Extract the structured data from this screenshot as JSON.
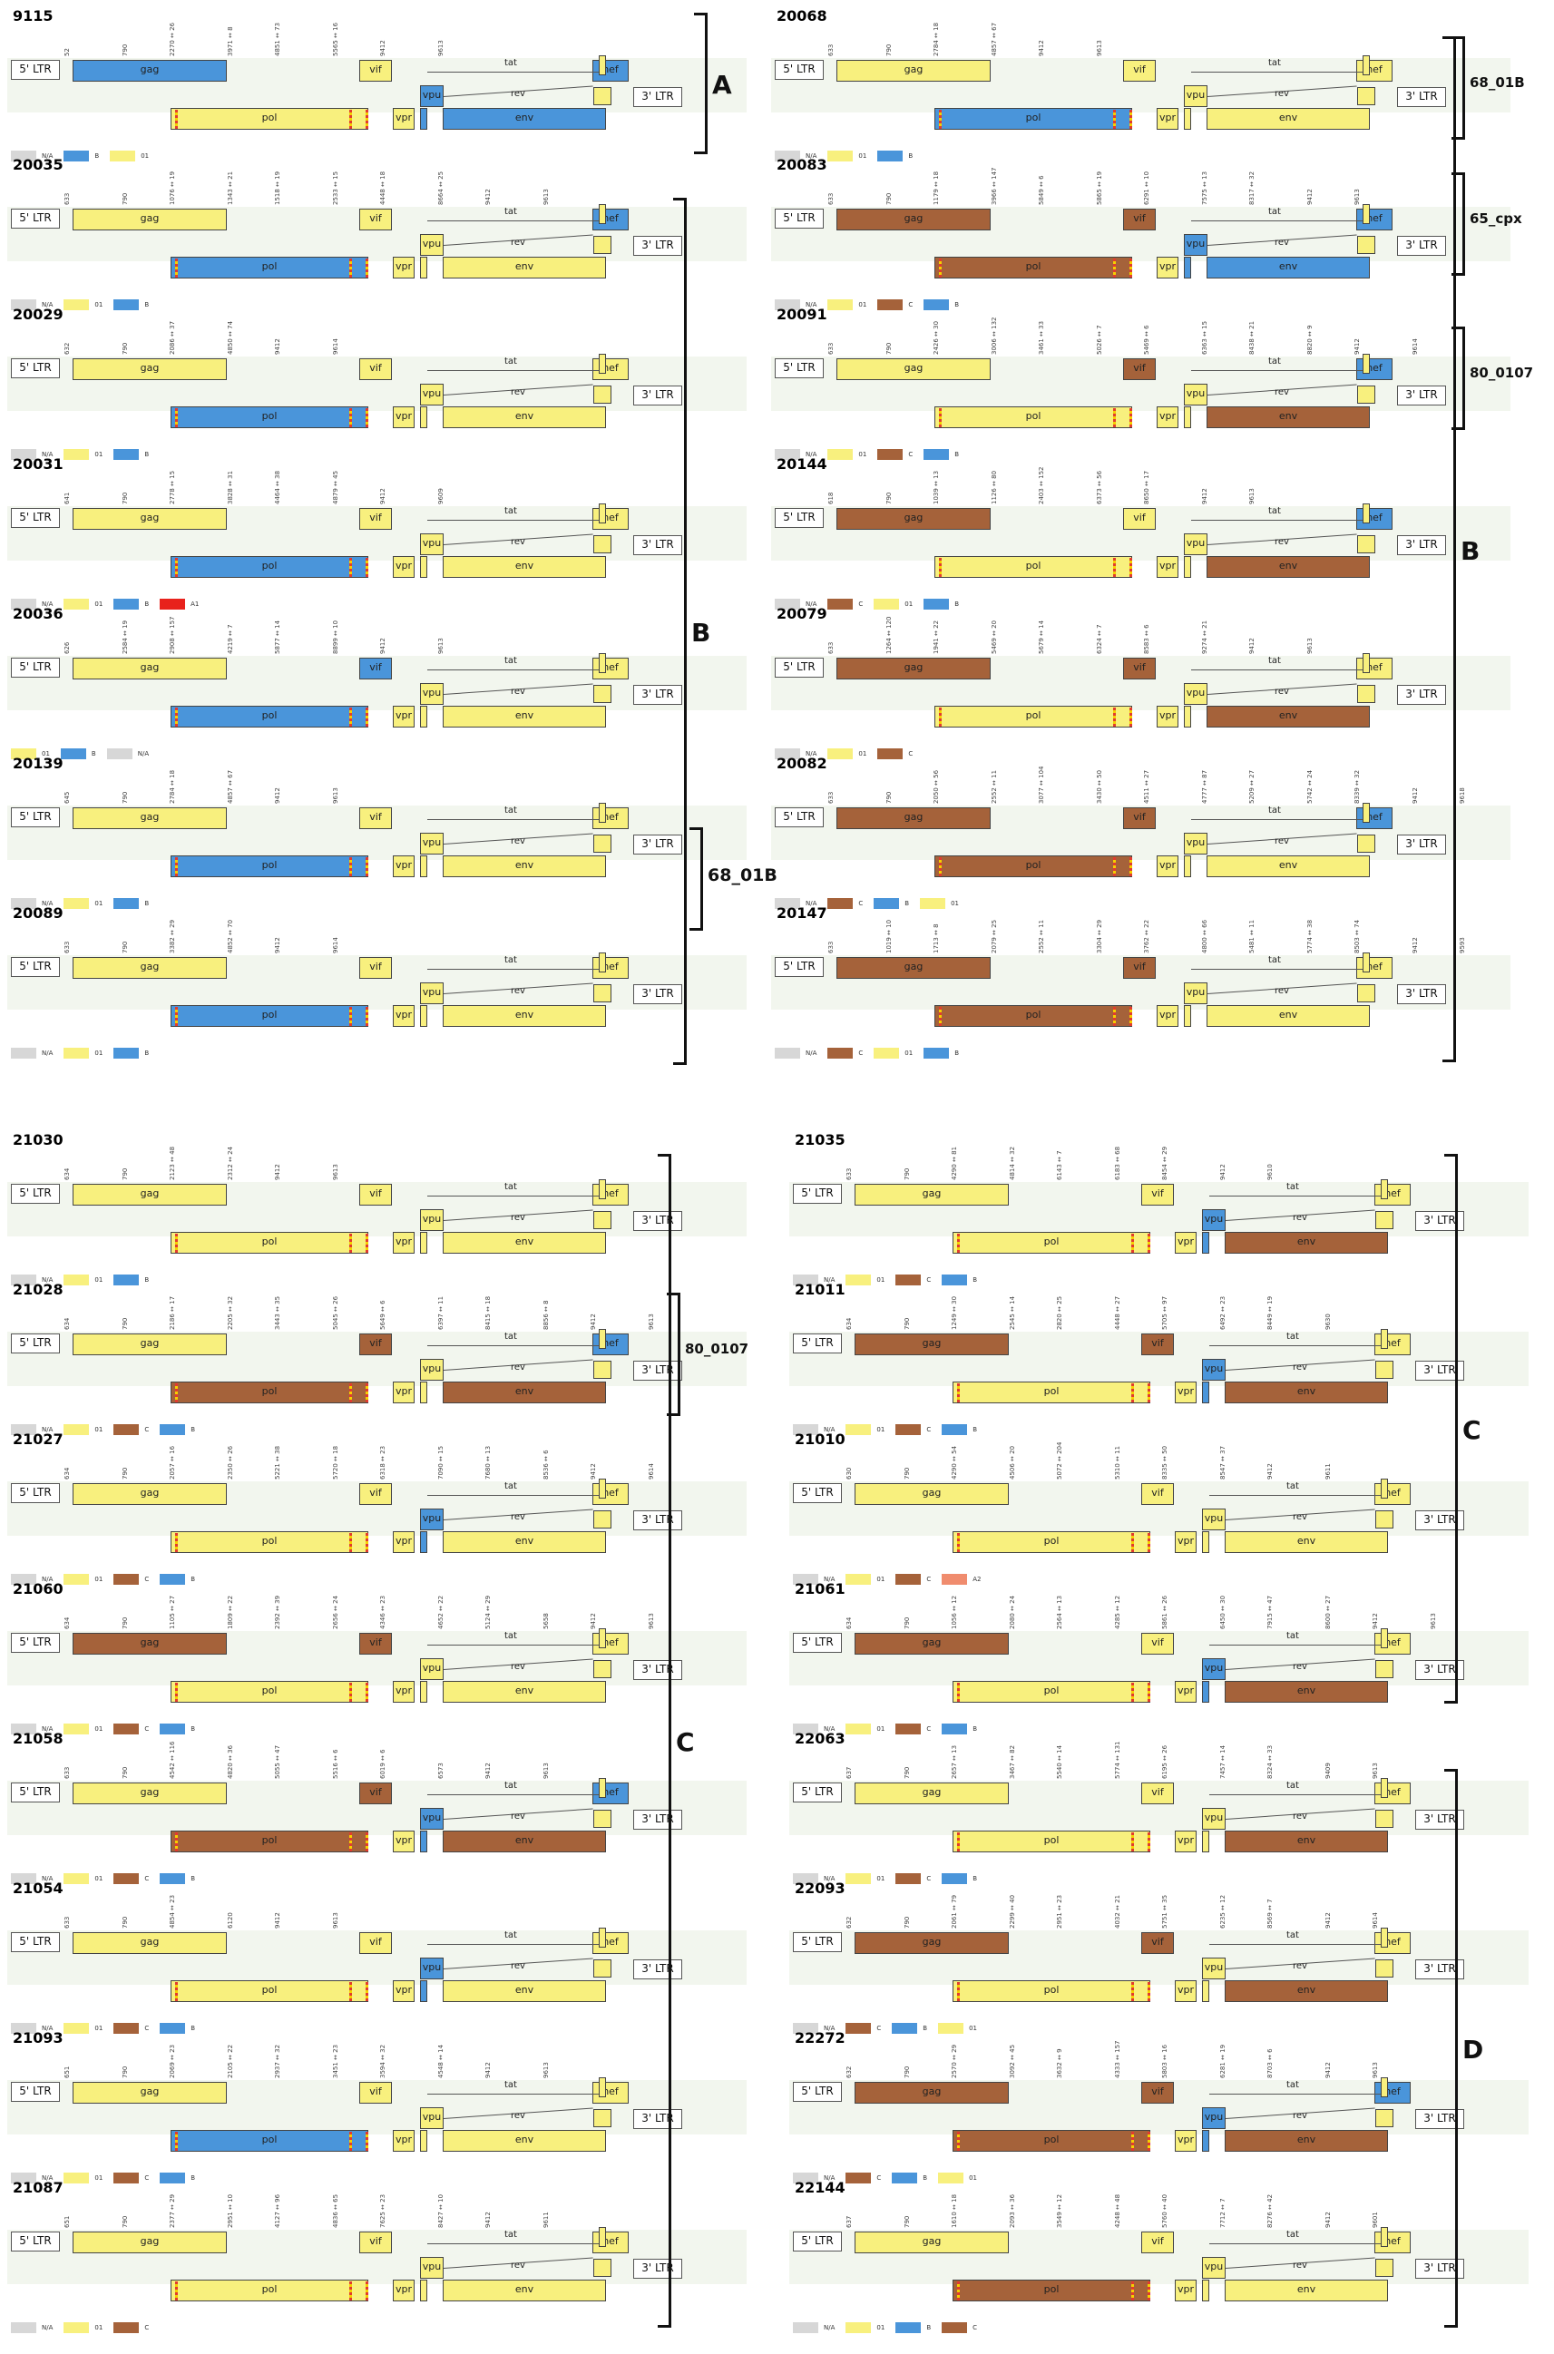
{
  "colors": {
    "yellow": "#f8f07e",
    "blue": "#4a95da",
    "brown": "#a5623a",
    "gray": "#d7d7d7",
    "red": "#e8221c",
    "salmon": "#f08c6e"
  },
  "labels": {
    "ltr5": "5' LTR",
    "ltr3": "3' LTR",
    "tat": "tat",
    "rev": "rev"
  },
  "legend_names": {
    "gray": "N/A",
    "yellow": "01",
    "blue": "B",
    "brown": "C",
    "red": "A1",
    "salmon": "A2"
  },
  "groups": [
    {
      "name": "A",
      "size": 28
    },
    {
      "name": "68_01B",
      "size": 19
    },
    {
      "name": "B",
      "size": 28
    },
    {
      "name": "68_01B",
      "size": 15
    },
    {
      "name": "65_cpx",
      "size": 15
    },
    {
      "name": "80_0107",
      "size": 15
    },
    {
      "name": "B",
      "size": 28
    },
    {
      "name": "80_0107",
      "size": 15
    },
    {
      "name": "C",
      "size": 28
    },
    {
      "name": "C",
      "size": 28
    },
    {
      "name": "D",
      "size": 28
    }
  ],
  "samples": [
    {
      "id": "9115",
      "pol": "Y",
      "gag": "B",
      "env": "B",
      "vif": "Y",
      "nef": "B",
      "vpu": "B",
      "legend": [
        "gray",
        "blue",
        "yellow"
      ],
      "ticks": [
        "52",
        "790",
        "2270 ↔ 26",
        "3971 ↔ 8",
        "4851 ↔ 73",
        "5565 ↔ 16",
        "9412",
        "9613"
      ]
    },
    {
      "id": "20035",
      "pol": "B",
      "gag": "Y",
      "env": "Y",
      "vif": "Y",
      "nef": "B",
      "vpu": "Y",
      "legend": [
        "gray",
        "yellow",
        "blue"
      ],
      "ticks": [
        "633",
        "790",
        "1076 ↔ 19",
        "1343 ↔ 21",
        "1518 ↔ 19",
        "2533 ↔ 15",
        "4448 ↔ 18",
        "8664 ↔ 25",
        "9412",
        "9613"
      ]
    },
    {
      "id": "20029",
      "pol": "B",
      "gag": "Y",
      "env": "Y",
      "vif": "Y",
      "nef": "Y",
      "vpu": "Y",
      "legend": [
        "gray",
        "yellow",
        "blue"
      ],
      "ticks": [
        "632",
        "790",
        "2086 ↔ 37",
        "4850 ↔ 74",
        "9412",
        "9614"
      ]
    },
    {
      "id": "20031",
      "pol": "B",
      "gag": "Y",
      "env": "Y",
      "vif": "Y",
      "nef": "Y",
      "vpu": "Y",
      "legend": [
        "gray",
        "yellow",
        "blue",
        "red"
      ],
      "ticks": [
        "641",
        "790",
        "2778 ↔ 15",
        "3828 ↔ 31",
        "4464 ↔ 38",
        "4879 ↔ 45",
        "9412",
        "9609"
      ]
    },
    {
      "id": "20036",
      "pol": "B",
      "gag": "Y",
      "env": "Y",
      "vif": "B",
      "nef": "Y",
      "vpu": "Y",
      "legend": [
        "yellow",
        "blue",
        "gray"
      ],
      "ticks": [
        "626",
        "2584 ↔ 19",
        "2908 ↔ 157",
        "4219 ↔ 7",
        "5877 ↔ 14",
        "8899 ↔ 10",
        "9412",
        "9613"
      ]
    },
    {
      "id": "20139",
      "pol": "B",
      "gag": "Y",
      "env": "Y",
      "vif": "Y",
      "nef": "Y",
      "vpu": "Y",
      "legend": [
        "gray",
        "yellow",
        "blue"
      ],
      "ticks": [
        "645",
        "790",
        "2784 ↔ 18",
        "4857 ↔ 67",
        "9412",
        "9613"
      ]
    },
    {
      "id": "20089",
      "pol": "B",
      "gag": "Y",
      "env": "Y",
      "vif": "Y",
      "nef": "Y",
      "vpu": "Y",
      "legend": [
        "gray",
        "yellow",
        "blue"
      ],
      "ticks": [
        "633",
        "790",
        "3382 ↔ 29",
        "4852 ↔ 70",
        "9412",
        "9614"
      ]
    },
    {
      "id": "20068",
      "pol": "B",
      "gag": "Y",
      "env": "Y",
      "vif": "Y",
      "nef": "Y",
      "vpu": "Y",
      "legend": [
        "gray",
        "yellow",
        "blue"
      ],
      "ticks": [
        "633",
        "790",
        "2784 ↔ 18",
        "4857 ↔ 67",
        "9412",
        "9613"
      ]
    },
    {
      "id": "20083",
      "pol": "C",
      "gag": "C",
      "env": "B",
      "vif": "C",
      "nef": "B",
      "vpu": "B",
      "legend": [
        "gray",
        "yellow",
        "brown",
        "blue"
      ],
      "ticks": [
        "633",
        "790",
        "1179 ↔ 18",
        "3966 ↔ 147",
        "5849 ↔ 6",
        "5865 ↔ 19",
        "6291 ↔ 10",
        "7575 ↔ 13",
        "8317 ↔ 32",
        "9412",
        "9613"
      ]
    },
    {
      "id": "20091",
      "pol": "Y",
      "gag": "Y",
      "env": "C",
      "vif": "C",
      "nef": "B",
      "vpu": "Y",
      "legend": [
        "gray",
        "yellow",
        "brown",
        "blue"
      ],
      "ticks": [
        "633",
        "790",
        "2426 ↔ 30",
        "3006 ↔ 132",
        "3461 ↔ 33",
        "5026 ↔ 7",
        "5469 ↔ 6",
        "6363 ↔ 15",
        "8438 ↔ 21",
        "8820 ↔ 9",
        "9412",
        "9614"
      ]
    },
    {
      "id": "20144",
      "pol": "Y",
      "gag": "C",
      "env": "C",
      "vif": "Y",
      "nef": "B",
      "vpu": "Y",
      "legend": [
        "gray",
        "brown",
        "yellow",
        "blue"
      ],
      "ticks": [
        "618",
        "790",
        "1039 ↔ 13",
        "1126 ↔ 80",
        "2403 ↔ 152",
        "6373 ↔ 56",
        "8650 ↔ 17",
        "9412",
        "9613"
      ]
    },
    {
      "id": "20079",
      "pol": "Y",
      "gag": "C",
      "env": "C",
      "vif": "C",
      "nef": "Y",
      "vpu": "Y",
      "legend": [
        "gray",
        "yellow",
        "brown"
      ],
      "ticks": [
        "633",
        "1264 ↔ 120",
        "1941 ↔ 22",
        "5469 ↔ 20",
        "5679 ↔ 14",
        "6324 ↔ 7",
        "8583 ↔ 6",
        "9274 ↔ 21",
        "9412",
        "9613"
      ]
    },
    {
      "id": "20082",
      "pol": "C",
      "gag": "C",
      "env": "Y",
      "vif": "C",
      "nef": "B",
      "vpu": "Y",
      "legend": [
        "gray",
        "brown",
        "blue",
        "yellow"
      ],
      "ticks": [
        "633",
        "790",
        "2050 ↔ 56",
        "2552 ↔ 11",
        "3077 ↔ 104",
        "3430 ↔ 50",
        "4511 ↔ 27",
        "4777 ↔ 87",
        "5209 ↔ 27",
        "5742 ↔ 24",
        "8339 ↔ 32",
        "9412",
        "9618"
      ]
    },
    {
      "id": "20147",
      "pol": "C",
      "gag": "C",
      "env": "Y",
      "vif": "C",
      "nef": "Y",
      "vpu": "Y",
      "legend": [
        "gray",
        "brown",
        "yellow",
        "blue"
      ],
      "ticks": [
        "633",
        "1019 ↔ 10",
        "1713 ↔ 8",
        "2079 ↔ 25",
        "2552 ↔ 11",
        "3304 ↔ 29",
        "3762 ↔ 22",
        "4800 ↔ 66",
        "5481 ↔ 11",
        "5774 ↔ 38",
        "8503 ↔ 74",
        "9412",
        "9593"
      ]
    },
    {
      "id": "21030",
      "pol": "Y",
      "gag": "Y",
      "env": "Y",
      "vif": "Y",
      "nef": "Y",
      "vpu": "Y",
      "legend": [
        "gray",
        "yellow",
        "blue"
      ],
      "ticks": [
        "634",
        "790",
        "2123 ↔ 48",
        "2312 ↔ 24",
        "9412",
        "9613"
      ]
    },
    {
      "id": "21028",
      "pol": "C",
      "gag": "Y",
      "env": "C",
      "vif": "C",
      "nef": "B",
      "vpu": "Y",
      "legend": [
        "gray",
        "yellow",
        "brown",
        "blue"
      ],
      "ticks": [
        "634",
        "790",
        "2186 ↔ 17",
        "2205 ↔ 32",
        "3443 ↔ 35",
        "5045 ↔ 26",
        "5649 ↔ 6",
        "6397 ↔ 11",
        "8415 ↔ 18",
        "8856 ↔ 8",
        "9412",
        "9613"
      ]
    },
    {
      "id": "21027",
      "pol": "Y",
      "gag": "Y",
      "env": "Y",
      "vif": "Y",
      "nef": "Y",
      "vpu": "B",
      "legend": [
        "gray",
        "yellow",
        "brown",
        "blue"
      ],
      "ticks": [
        "634",
        "790",
        "2057 ↔ 16",
        "2350 ↔ 26",
        "5221 ↔ 38",
        "5720 ↔ 18",
        "6318 ↔ 23",
        "7090 ↔ 15",
        "7680 ↔ 13",
        "8536 ↔ 6",
        "9412",
        "9614"
      ]
    },
    {
      "id": "21060",
      "pol": "Y",
      "gag": "C",
      "env": "Y",
      "vif": "C",
      "nef": "Y",
      "vpu": "Y",
      "legend": [
        "gray",
        "yellow",
        "brown",
        "blue"
      ],
      "ticks": [
        "634",
        "790",
        "1105 ↔ 27",
        "1809 ↔ 22",
        "2392 ↔ 39",
        "2656 ↔ 24",
        "4346 ↔ 23",
        "4652 ↔ 22",
        "5124 ↔ 29",
        "5658",
        "9412",
        "9613"
      ]
    },
    {
      "id": "21058",
      "pol": "C",
      "gag": "Y",
      "env": "C",
      "vif": "C",
      "nef": "B",
      "vpu": "B",
      "legend": [
        "gray",
        "yellow",
        "brown",
        "blue"
      ],
      "ticks": [
        "633",
        "790",
        "4542 ↔ 116",
        "4820 ↔ 36",
        "5055 ↔ 47",
        "5516 ↔ 6",
        "6019 ↔ 6",
        "6573",
        "9412",
        "9613"
      ]
    },
    {
      "id": "21054",
      "pol": "Y",
      "gag": "Y",
      "env": "Y",
      "vif": "Y",
      "nef": "Y",
      "vpu": "B",
      "legend": [
        "gray",
        "yellow",
        "brown",
        "blue"
      ],
      "ticks": [
        "633",
        "790",
        "4854 ↔ 23",
        "6120",
        "9412",
        "9613"
      ]
    },
    {
      "id": "21093",
      "pol": "B",
      "gag": "Y",
      "env": "Y",
      "vif": "Y",
      "nef": "Y",
      "vpu": "Y",
      "legend": [
        "gray",
        "yellow",
        "brown",
        "blue"
      ],
      "ticks": [
        "651",
        "790",
        "2069 ↔ 23",
        "2105 ↔ 22",
        "2937 ↔ 32",
        "3451 ↔ 23",
        "3594 ↔ 32",
        "4548 ↔ 14",
        "9412",
        "9613"
      ]
    },
    {
      "id": "21087",
      "pol": "Y",
      "gag": "Y",
      "env": "Y",
      "vif": "Y",
      "nef": "Y",
      "vpu": "Y",
      "legend": [
        "gray",
        "yellow",
        "brown"
      ],
      "ticks": [
        "651",
        "790",
        "2377 ↔ 29",
        "2951 ↔ 10",
        "4127 ↔ 96",
        "4836 ↔ 65",
        "7625 ↔ 23",
        "8427 ↔ 10",
        "9412",
        "9611"
      ]
    },
    {
      "id": "21035",
      "pol": "Y",
      "gag": "Y",
      "env": "C",
      "vif": "Y",
      "nef": "Y",
      "vpu": "B",
      "legend": [
        "gray",
        "yellow",
        "brown",
        "blue"
      ],
      "ticks": [
        "633",
        "790",
        "4290 ↔ 81",
        "4814 ↔ 32",
        "6143 ↔ 7",
        "6183 ↔ 68",
        "8454 ↔ 29",
        "9412",
        "9610"
      ]
    },
    {
      "id": "21011",
      "pol": "Y",
      "gag": "C",
      "env": "C",
      "vif": "C",
      "nef": "Y",
      "vpu": "B",
      "legend": [
        "gray",
        "yellow",
        "brown",
        "blue"
      ],
      "ticks": [
        "634",
        "790",
        "1249 ↔ 30",
        "2545 ↔ 14",
        "2820 ↔ 25",
        "4448 ↔ 27",
        "5705 ↔ 97",
        "6492 ↔ 23",
        "8449 ↔ 19",
        "9630"
      ]
    },
    {
      "id": "21010",
      "pol": "Y",
      "gag": "Y",
      "env": "Y",
      "vif": "Y",
      "nef": "Y",
      "vpu": "Y",
      "legend": [
        "gray",
        "yellow",
        "brown",
        "salmon"
      ],
      "ticks": [
        "630",
        "790",
        "4290 ↔ 54",
        "4506 ↔ 20",
        "5072 ↔ 204",
        "5310 ↔ 11",
        "8335 ↔ 50",
        "8547 ↔ 37",
        "9412",
        "9611"
      ]
    },
    {
      "id": "21061",
      "pol": "Y",
      "gag": "C",
      "env": "C",
      "vif": "Y",
      "nef": "Y",
      "vpu": "B",
      "legend": [
        "gray",
        "yellow",
        "brown",
        "blue"
      ],
      "ticks": [
        "634",
        "790",
        "1056 ↔ 12",
        "2080 ↔ 24",
        "2564 ↔ 13",
        "4285 ↔ 12",
        "5861 ↔ 26",
        "6450 ↔ 30",
        "7915 ↔ 47",
        "8600 ↔ 27",
        "9412",
        "9613"
      ]
    },
    {
      "id": "22063",
      "pol": "Y",
      "gag": "Y",
      "env": "C",
      "vif": "Y",
      "nef": "Y",
      "vpu": "Y",
      "legend": [
        "gray",
        "yellow",
        "brown",
        "blue"
      ],
      "ticks": [
        "637",
        "790",
        "2657 ↔ 13",
        "3467 ↔ 82",
        "5540 ↔ 14",
        "5774 ↔ 131",
        "6195 ↔ 26",
        "7457 ↔ 14",
        "8324 ↔ 33",
        "9409",
        "9613"
      ]
    },
    {
      "id": "22093",
      "pol": "Y",
      "gag": "C",
      "env": "C",
      "vif": "C",
      "nef": "Y",
      "vpu": "Y",
      "legend": [
        "gray",
        "brown",
        "blue",
        "yellow"
      ],
      "ticks": [
        "632",
        "790",
        "2061 ↔ 79",
        "2299 ↔ 40",
        "2951 ↔ 23",
        "4032 ↔ 21",
        "5751 ↔ 35",
        "6235 ↔ 12",
        "8569 ↔ 7",
        "9412",
        "9614"
      ]
    },
    {
      "id": "22272",
      "pol": "C",
      "gag": "C",
      "env": "C",
      "vif": "C",
      "nef": "B",
      "vpu": "B",
      "legend": [
        "gray",
        "brown",
        "blue",
        "yellow"
      ],
      "ticks": [
        "632",
        "790",
        "2570 ↔ 29",
        "3092 ↔ 45",
        "3632 ↔ 9",
        "4333 ↔ 157",
        "5803 ↔ 16",
        "6281 ↔ 19",
        "8703 ↔ 6",
        "9412",
        "9613"
      ]
    },
    {
      "id": "22144",
      "pol": "C",
      "gag": "Y",
      "env": "Y",
      "vif": "Y",
      "nef": "Y",
      "vpu": "Y",
      "legend": [
        "gray",
        "yellow",
        "blue",
        "brown"
      ],
      "ticks": [
        "637",
        "790",
        "1610 ↔ 18",
        "2093 ↔ 36",
        "3549 ↔ 12",
        "4248 ↔ 48",
        "5760 ↔ 40",
        "7712 ↔ 7",
        "8276 ↔ 42",
        "9412",
        "9601"
      ]
    }
  ]
}
